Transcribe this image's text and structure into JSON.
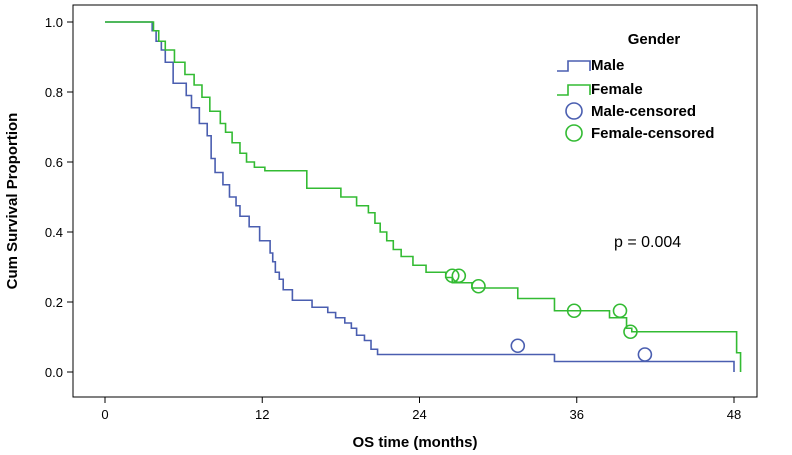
{
  "chart_data": {
    "type": "line",
    "step": true,
    "xlabel": "OS time (months)",
    "ylabel": "Cum Survival Proportion",
    "xlim": [
      0,
      48
    ],
    "ylim": [
      0.0,
      1.0
    ],
    "xticks": [
      0,
      12,
      24,
      36,
      48
    ],
    "yticks": [
      0.0,
      0.2,
      0.4,
      0.6,
      0.8,
      1.0
    ],
    "xtick_labels": [
      "0",
      "12",
      "24",
      "36",
      "48"
    ],
    "ytick_labels": [
      "0.0",
      "0.2",
      "0.4",
      "0.6",
      "0.8",
      "1.0"
    ],
    "grid": false,
    "legend": {
      "title": "Gender",
      "placement": "top-right",
      "entries": [
        "Male",
        "Female",
        "Male-censored",
        "Female-censored"
      ]
    },
    "annotation": "p = 0.004",
    "series": [
      {
        "name": "Male",
        "color": "#4a5eb0",
        "x": [
          0,
          3.6,
          3.9,
          4.3,
          4.6,
          5.2,
          6.2,
          6.6,
          7.2,
          7.8,
          8.1,
          8.4,
          9.0,
          9.5,
          10.0,
          10.3,
          11.0,
          11.8,
          12.6,
          12.8,
          13.0,
          13.3,
          13.6,
          14.3,
          15.8,
          17.0,
          17.6,
          18.3,
          18.8,
          19.2,
          19.8,
          20.3,
          20.8,
          34.3,
          48.0
        ],
        "y": [
          1.0,
          0.975,
          0.945,
          0.92,
          0.885,
          0.825,
          0.79,
          0.755,
          0.71,
          0.675,
          0.61,
          0.57,
          0.535,
          0.5,
          0.475,
          0.445,
          0.415,
          0.375,
          0.34,
          0.315,
          0.285,
          0.265,
          0.235,
          0.205,
          0.185,
          0.17,
          0.155,
          0.14,
          0.125,
          0.105,
          0.09,
          0.065,
          0.05,
          0.03,
          0.0
        ],
        "censored": [
          [
            31.5,
            0.075
          ],
          [
            41.2,
            0.05
          ]
        ]
      },
      {
        "name": "Female",
        "color": "#33bb33",
        "x": [
          0,
          3.7,
          4.1,
          4.6,
          5.3,
          6.1,
          6.8,
          7.4,
          8.0,
          8.8,
          9.2,
          9.7,
          10.3,
          10.8,
          11.4,
          12.2,
          15.4,
          18.0,
          19.2,
          20.1,
          20.6,
          21.0,
          21.5,
          22.0,
          22.6,
          23.5,
          24.5,
          26.0,
          26.5,
          28.0,
          31.5,
          34.3,
          38.5,
          39.8,
          40.2,
          48.2,
          48.5
        ],
        "y": [
          1.0,
          0.975,
          0.945,
          0.92,
          0.885,
          0.85,
          0.82,
          0.785,
          0.745,
          0.71,
          0.685,
          0.655,
          0.625,
          0.6,
          0.585,
          0.575,
          0.525,
          0.5,
          0.475,
          0.455,
          0.425,
          0.4,
          0.375,
          0.35,
          0.33,
          0.305,
          0.285,
          0.27,
          0.255,
          0.24,
          0.21,
          0.175,
          0.155,
          0.125,
          0.115,
          0.055,
          0.0
        ],
        "censored": [
          [
            26.5,
            0.275
          ],
          [
            27.0,
            0.275
          ],
          [
            28.5,
            0.245
          ],
          [
            35.8,
            0.175
          ],
          [
            39.3,
            0.175
          ],
          [
            40.1,
            0.115
          ]
        ]
      }
    ]
  }
}
